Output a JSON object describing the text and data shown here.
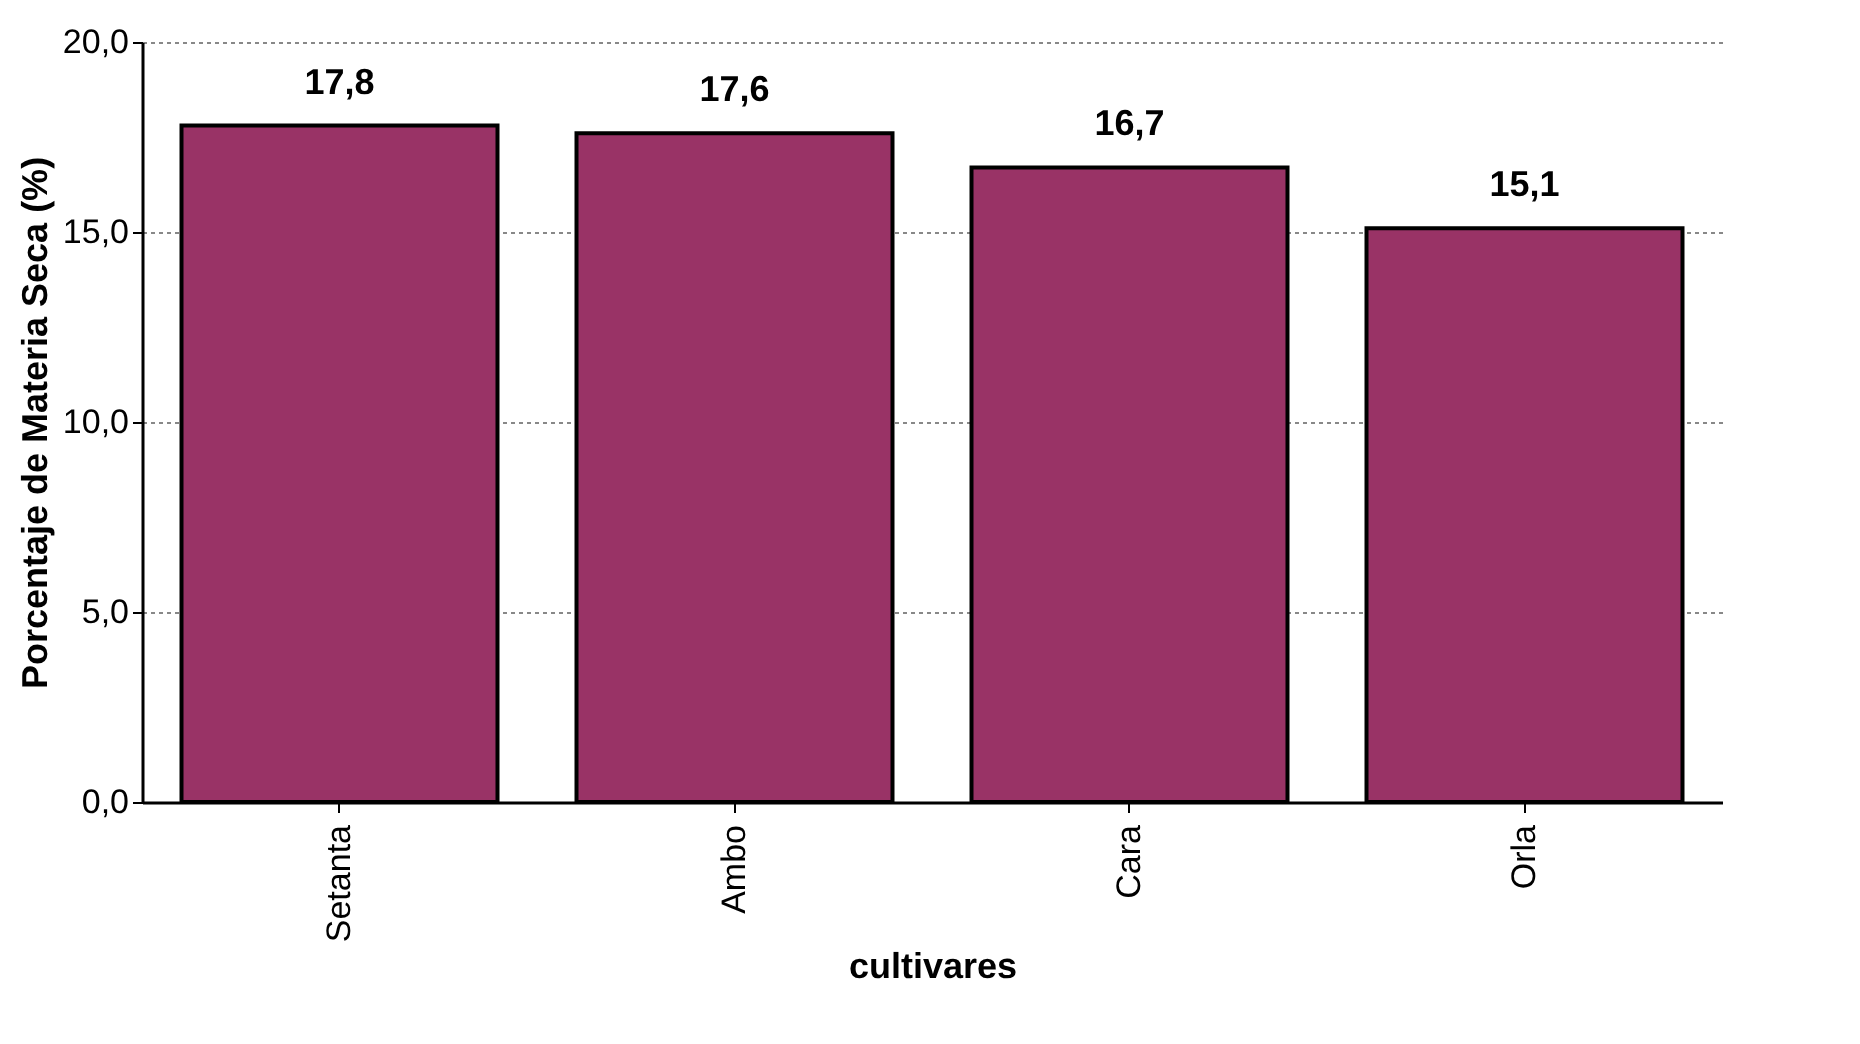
{
  "chart_data": {
    "type": "bar",
    "xlabel": "cultivares",
    "ylabel": "Porcentaje de Materia Seca (%)",
    "categories": [
      "Setanta",
      "Ambo",
      "Cara",
      "Orla"
    ],
    "values": [
      17.8,
      17.6,
      16.7,
      15.1
    ],
    "value_labels": [
      "17,8",
      "17,6",
      "16,7",
      "15,1"
    ],
    "color": "#993366",
    "ylim": [
      0,
      20
    ],
    "yticks": [
      {
        "value": 0,
        "label": "0,0"
      },
      {
        "value": 5,
        "label": "5,0"
      },
      {
        "value": 10,
        "label": "10,0"
      },
      {
        "value": 15,
        "label": "15,0"
      },
      {
        "value": 20,
        "label": "20,0"
      }
    ],
    "grid": "y"
  }
}
